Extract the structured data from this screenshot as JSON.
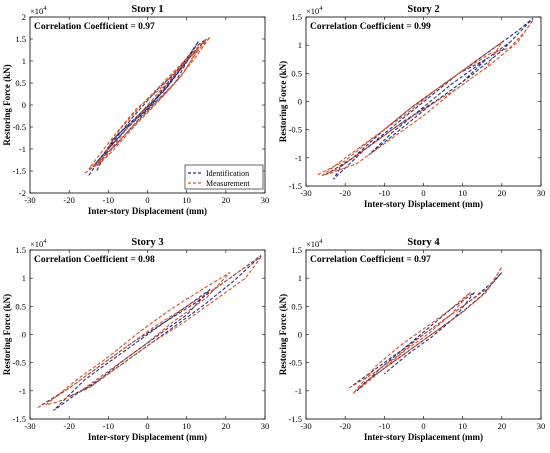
{
  "chart_data": [
    {
      "type": "line",
      "title": "Story 1",
      "annotation": "Correlation Coefficient = ",
      "coefficient": "0.97",
      "xlabel": "Inter-story Displacement (mm)",
      "ylabel": "Restoring Force (kN)",
      "y_exponent": "4",
      "xlim": [
        -30,
        30
      ],
      "ylim": [
        -2,
        2
      ],
      "xticks": [
        "-30",
        "-20",
        "-10",
        "0",
        "10",
        "20",
        "30"
      ],
      "yticks": [
        "-2",
        "-1.5",
        "-1",
        "-0.5",
        "0",
        "0.5",
        "1",
        "1.5",
        "2"
      ],
      "x_axis_numbers": [
        -30,
        -20,
        -10,
        0,
        10,
        20,
        30
      ],
      "y_axis_numbers": [
        -2,
        -1.5,
        -1,
        -0.5,
        0,
        0.5,
        1,
        1.5,
        2
      ],
      "legend_position": "bottom-right",
      "series": [
        {
          "name": "Identification",
          "color": "#2b2d7a",
          "points": [
            [
              -15,
              -1.6
            ],
            [
              -8,
              -0.7
            ],
            [
              0,
              -0.1
            ],
            [
              6,
              0.6
            ],
            [
              12,
              1.3
            ],
            [
              15,
              1.5
            ],
            [
              10,
              1.0
            ],
            [
              4,
              0.3
            ],
            [
              -3,
              -0.3
            ],
            [
              -10,
              -1.0
            ],
            [
              -14,
              -1.4
            ],
            [
              -6,
              -0.6
            ],
            [
              2,
              0.1
            ],
            [
              9,
              0.9
            ],
            [
              13,
              1.45
            ],
            [
              7,
              0.5
            ],
            [
              -1,
              -0.2
            ],
            [
              -8,
              -0.9
            ],
            [
              -12,
              -1.2
            ],
            [
              -4,
              -0.3
            ],
            [
              3,
              0.4
            ],
            [
              8,
              0.8
            ],
            [
              11,
              1.1
            ],
            [
              5,
              0.4
            ],
            [
              -2,
              -0.2
            ],
            [
              -9,
              -0.8
            ],
            [
              -13,
              -1.5
            ]
          ]
        },
        {
          "name": "Measurement",
          "color": "#d4512a",
          "points": [
            [
              -16,
              -1.55
            ],
            [
              -11,
              -1.2
            ],
            [
              -5,
              -0.5
            ],
            [
              0,
              0.0
            ],
            [
              5,
              0.5
            ],
            [
              10,
              1.0
            ],
            [
              14,
              1.35
            ],
            [
              16,
              1.55
            ],
            [
              12,
              1.05
            ],
            [
              6,
              0.4
            ],
            [
              0,
              -0.15
            ],
            [
              -6,
              -0.7
            ],
            [
              -12,
              -1.25
            ],
            [
              -15,
              -1.45
            ],
            [
              -9,
              -0.75
            ],
            [
              -3,
              -0.1
            ],
            [
              3,
              0.35
            ],
            [
              8,
              0.85
            ],
            [
              13,
              1.3
            ],
            [
              9,
              0.7
            ],
            [
              3,
              0.1
            ],
            [
              -3,
              -0.45
            ],
            [
              -9,
              -1.05
            ],
            [
              -13,
              -1.4
            ],
            [
              -7,
              -0.55
            ],
            [
              -1,
              0.05
            ],
            [
              5,
              0.6
            ],
            [
              11,
              1.15
            ],
            [
              15,
              1.5
            ],
            [
              8,
              0.6
            ],
            [
              1,
              -0.05
            ],
            [
              -5,
              -0.6
            ],
            [
              -12,
              -1.3
            ],
            [
              -16,
              -1.55
            ]
          ]
        }
      ]
    },
    {
      "type": "line",
      "title": "Story 2",
      "annotation": "Correlation Coefficient = ",
      "coefficient": "0.99",
      "xlabel": "Inter-story Displacement (mm)",
      "ylabel": "Restoring Force (kN)",
      "y_exponent": "4",
      "xlim": [
        -30,
        30
      ],
      "ylim": [
        -1.5,
        1.5
      ],
      "xticks": [
        "-30",
        "-20",
        "-10",
        "0",
        "10",
        "20",
        "30"
      ],
      "yticks": [
        "-1.5",
        "-1",
        "-0.5",
        "0",
        "0.5",
        "1",
        "1.5"
      ],
      "x_axis_numbers": [
        -30,
        -20,
        -10,
        0,
        10,
        20,
        30
      ],
      "y_axis_numbers": [
        -1.5,
        -1,
        -0.5,
        0,
        0.5,
        1,
        1.5
      ],
      "series": [
        {
          "name": "Identification",
          "color": "#2b2d7a",
          "points": [
            [
              -25,
              -1.3
            ],
            [
              -18,
              -1.0
            ],
            [
              -10,
              -0.5
            ],
            [
              -3,
              -0.1
            ],
            [
              4,
              0.25
            ],
            [
              11,
              0.6
            ],
            [
              18,
              0.95
            ],
            [
              24,
              1.25
            ],
            [
              28,
              1.48
            ],
            [
              20,
              0.9
            ],
            [
              12,
              0.45
            ],
            [
              4,
              0.05
            ],
            [
              -5,
              -0.35
            ],
            [
              -13,
              -0.75
            ],
            [
              -21,
              -1.15
            ],
            [
              -23,
              -1.38
            ],
            [
              -15,
              -0.85
            ],
            [
              -7,
              -0.4
            ],
            [
              1,
              0.05
            ],
            [
              9,
              0.5
            ],
            [
              16,
              0.75
            ],
            [
              10,
              0.35
            ],
            [
              2,
              -0.05
            ],
            [
              -6,
              -0.5
            ],
            [
              -14,
              -0.95
            ],
            [
              -8,
              -0.55
            ],
            [
              0,
              -0.1
            ],
            [
              7,
              0.3
            ],
            [
              14,
              0.65
            ],
            [
              22,
              1.05
            ]
          ]
        },
        {
          "name": "Measurement",
          "color": "#d4512a",
          "points": [
            [
              -27,
              -1.3
            ],
            [
              -20,
              -1.05
            ],
            [
              -12,
              -0.6
            ],
            [
              -4,
              -0.2
            ],
            [
              3,
              0.2
            ],
            [
              10,
              0.55
            ],
            [
              17,
              0.85
            ],
            [
              22,
              0.95
            ],
            [
              26,
              1.25
            ],
            [
              28,
              1.45
            ],
            [
              24,
              1.05
            ],
            [
              17,
              0.65
            ],
            [
              9,
              0.25
            ],
            [
              1,
              -0.1
            ],
            [
              -7,
              -0.45
            ],
            [
              -15,
              -0.85
            ],
            [
              -22,
              -1.2
            ],
            [
              -26,
              -1.32
            ],
            [
              -19,
              -0.95
            ],
            [
              -11,
              -0.55
            ],
            [
              -3,
              -0.1
            ],
            [
              5,
              0.3
            ],
            [
              13,
              0.7
            ],
            [
              20,
              1.05
            ],
            [
              16,
              0.6
            ],
            [
              8,
              0.2
            ],
            [
              0,
              -0.25
            ],
            [
              -8,
              -0.65
            ],
            [
              -17,
              -1.1
            ],
            [
              -24,
              -1.28
            ]
          ]
        }
      ]
    },
    {
      "type": "line",
      "title": "Story 3",
      "annotation": "Correlation Coefficient = ",
      "coefficient": "0.98",
      "xlabel": "Inter-story Displacement (mm)",
      "ylabel": "Restoring Force (kN)",
      "y_exponent": "4",
      "xlim": [
        -30,
        30
      ],
      "ylim": [
        -1.5,
        1.5
      ],
      "xticks": [
        "-30",
        "-20",
        "-10",
        "0",
        "10",
        "20",
        "30"
      ],
      "yticks": [
        "-1.5",
        "-1",
        "-0.5",
        "0",
        "0.5",
        "1",
        "1.5"
      ],
      "x_axis_numbers": [
        -30,
        -20,
        -10,
        0,
        10,
        20,
        30
      ],
      "y_axis_numbers": [
        -1.5,
        -1,
        -0.5,
        0,
        0.5,
        1,
        1.5
      ],
      "series": [
        {
          "name": "Identification",
          "color": "#2b2d7a",
          "points": [
            [
              -27,
              -1.25
            ],
            [
              -20,
              -0.95
            ],
            [
              -12,
              -0.55
            ],
            [
              -4,
              -0.15
            ],
            [
              4,
              0.2
            ],
            [
              12,
              0.55
            ],
            [
              20,
              0.95
            ],
            [
              27,
              1.3
            ],
            [
              29,
              1.4
            ],
            [
              22,
              0.95
            ],
            [
              14,
              0.5
            ],
            [
              6,
              0.1
            ],
            [
              -2,
              -0.3
            ],
            [
              -10,
              -0.7
            ],
            [
              -18,
              -1.05
            ],
            [
              -24,
              -1.35
            ],
            [
              -16,
              -0.8
            ],
            [
              -8,
              -0.4
            ],
            [
              0,
              0.0
            ],
            [
              8,
              0.4
            ],
            [
              16,
              0.8
            ],
            [
              10,
              0.35
            ],
            [
              2,
              -0.05
            ],
            [
              -6,
              -0.45
            ],
            [
              -14,
              -0.9
            ],
            [
              -20,
              -1.1
            ]
          ]
        },
        {
          "name": "Measurement",
          "color": "#d4512a",
          "points": [
            [
              -28,
              -1.3
            ],
            [
              -22,
              -1.05
            ],
            [
              -14,
              -0.65
            ],
            [
              -6,
              -0.25
            ],
            [
              2,
              0.15
            ],
            [
              10,
              0.5
            ],
            [
              18,
              0.85
            ],
            [
              24,
              1.15
            ],
            [
              29,
              1.38
            ],
            [
              25,
              1.0
            ],
            [
              17,
              0.6
            ],
            [
              9,
              0.2
            ],
            [
              1,
              -0.15
            ],
            [
              -7,
              -0.55
            ],
            [
              -15,
              -0.95
            ],
            [
              -23,
              -1.2
            ],
            [
              -26,
              -1.25
            ],
            [
              -18,
              -0.8
            ],
            [
              -10,
              -0.4
            ],
            [
              -2,
              0.05
            ],
            [
              6,
              0.45
            ],
            [
              14,
              0.8
            ],
            [
              21,
              1.1
            ],
            [
              15,
              0.65
            ],
            [
              7,
              0.25
            ],
            [
              -1,
              -0.2
            ],
            [
              -9,
              -0.6
            ],
            [
              -17,
              -1.0
            ]
          ]
        }
      ]
    },
    {
      "type": "line",
      "title": "Story 4",
      "annotation": "Correlation Coefficient = ",
      "coefficient": "0.97",
      "xlabel": "Inter-story Displacement (mm)",
      "ylabel": "Restoring Force (kN)",
      "y_exponent": "4",
      "xlim": [
        -30,
        30
      ],
      "ylim": [
        -1.5,
        1.5
      ],
      "xticks": [
        "-30",
        "-20",
        "-10",
        "0",
        "10",
        "20",
        "30"
      ],
      "yticks": [
        "-1.5",
        "-1",
        "-0.5",
        "0",
        "0.5",
        "1",
        "1.5"
      ],
      "x_axis_numbers": [
        -30,
        -20,
        -10,
        0,
        10,
        20,
        30
      ],
      "y_axis_numbers": [
        -1.5,
        -1,
        -0.5,
        0,
        0.5,
        1,
        1.5
      ],
      "series": [
        {
          "name": "Identification",
          "color": "#2b2d7a",
          "points": [
            [
              -18,
              -0.9
            ],
            [
              -12,
              -0.6
            ],
            [
              -6,
              -0.3
            ],
            [
              0,
              0.0
            ],
            [
              6,
              0.3
            ],
            [
              12,
              0.6
            ],
            [
              18,
              0.95
            ],
            [
              20,
              1.1
            ],
            [
              15,
              0.7
            ],
            [
              9,
              0.35
            ],
            [
              3,
              0.05
            ],
            [
              -3,
              -0.25
            ],
            [
              -9,
              -0.55
            ],
            [
              -15,
              -0.85
            ],
            [
              -17,
              -1.0
            ],
            [
              -11,
              -0.6
            ],
            [
              -5,
              -0.25
            ],
            [
              1,
              0.1
            ],
            [
              7,
              0.45
            ],
            [
              13,
              0.75
            ],
            [
              8,
              0.3
            ],
            [
              2,
              -0.05
            ],
            [
              -4,
              -0.35
            ],
            [
              -10,
              -0.7
            ]
          ]
        },
        {
          "name": "Measurement",
          "color": "#d4512a",
          "points": [
            [
              -19,
              -0.95
            ],
            [
              -13,
              -0.7
            ],
            [
              -7,
              -0.4
            ],
            [
              -1,
              -0.05
            ],
            [
              5,
              0.25
            ],
            [
              11,
              0.55
            ],
            [
              17,
              0.85
            ],
            [
              20,
              1.2
            ],
            [
              16,
              0.75
            ],
            [
              10,
              0.4
            ],
            [
              4,
              0.1
            ],
            [
              -2,
              -0.2
            ],
            [
              -8,
              -0.5
            ],
            [
              -14,
              -0.8
            ],
            [
              -18,
              -1.05
            ],
            [
              -12,
              -0.55
            ],
            [
              -6,
              -0.2
            ],
            [
              0,
              0.1
            ],
            [
              6,
              0.4
            ],
            [
              12,
              0.75
            ],
            [
              7,
              0.35
            ],
            [
              1,
              0.0
            ],
            [
              -5,
              -0.3
            ],
            [
              -11,
              -0.65
            ],
            [
              -16,
              -0.95
            ]
          ]
        }
      ]
    }
  ]
}
